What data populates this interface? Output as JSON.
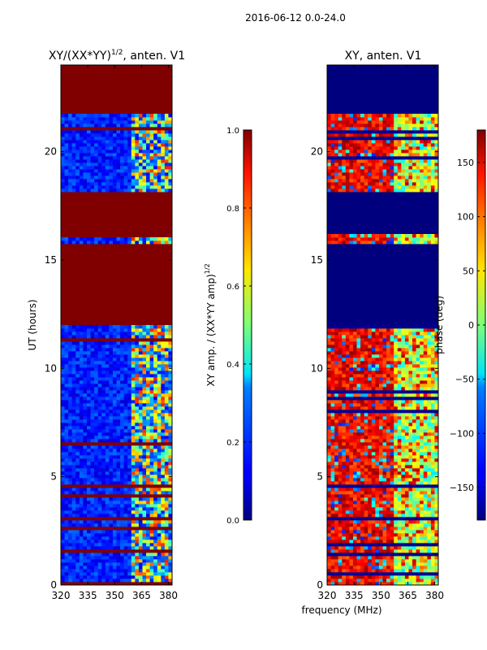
{
  "figure": {
    "suptitle": "2016-06-12 0.0-24.0",
    "xlabel": "frequency (MHz)"
  },
  "chart_data": [
    {
      "type": "heatmap",
      "title_main": "XY/(XX*YY)",
      "title_exp": "1/2",
      "title_tail": ", anten. V1",
      "ylabel": "UT (hours)",
      "xlim": [
        320,
        382
      ],
      "ylim": [
        0,
        24
      ],
      "xticks": [
        320,
        335,
        350,
        365,
        380
      ],
      "yticks": [
        0,
        5,
        10,
        15,
        20
      ],
      "colorbar": {
        "label_main": "XY amp. / (XX*YY amp)",
        "label_exp": "1/2",
        "range": [
          0.0,
          1.0
        ],
        "ticks": [
          "0.0",
          "0.2",
          "0.4",
          "0.6",
          "0.8",
          "1.0"
        ],
        "colormap": "jet"
      },
      "flagged_ranges_ut": [
        [
          21.8,
          24.0
        ],
        [
          16.0,
          18.2
        ],
        [
          12.0,
          15.8
        ],
        [
          0.0,
          0.1
        ]
      ],
      "description": "low normalized amplitude (~0.1-0.2) over 320-360 MHz, patchy higher values (~0.5-0.8) over 360-380 MHz"
    },
    {
      "type": "heatmap",
      "title": "XY, anten. V1",
      "xlim": [
        320,
        382
      ],
      "ylim": [
        0,
        24
      ],
      "xticks": [
        320,
        335,
        350,
        365,
        380
      ],
      "yticks": [
        0,
        5,
        10,
        15,
        20
      ],
      "colorbar": {
        "label": "phase (deg)",
        "range": [
          -180,
          180
        ],
        "ticks": [
          "150",
          "100",
          "50",
          "0",
          "−50",
          "−100",
          "−150"
        ],
        "colormap": "jet"
      },
      "flagged_ranges_ut": [
        [
          21.8,
          24.0
        ],
        [
          16.2,
          18.2
        ],
        [
          12.0,
          15.8
        ]
      ],
      "description": "phase near +150 deg over 320-355 MHz, mixed -50 to +100 deg over 360-380 MHz"
    }
  ],
  "colors": {
    "jet_dark_red": "#800000",
    "jet_dark_blue": "#00007f"
  }
}
